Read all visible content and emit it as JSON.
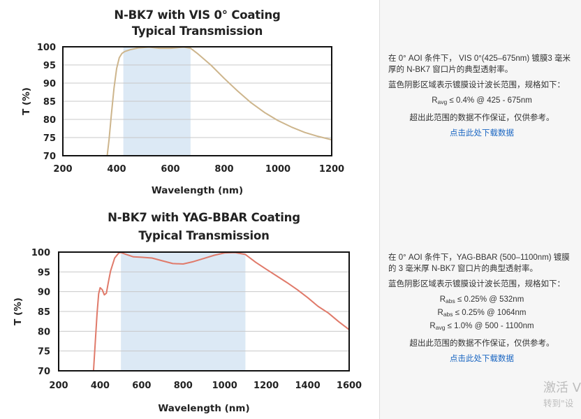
{
  "charts": [
    {
      "title_line1": "N-BK7 with VIS 0° Coating",
      "title_line2": "Typical Transmission",
      "xlabel": "Wavelength (nm)",
      "ylabel": "T (%)",
      "description": {
        "line1": "在 0° AOI 条件下， VIS 0°(425–675nm) 镀膜3 毫米厚的 N-BK7 窗口片的典型透射率。",
        "line2": "蓝色阴影区域表示镀膜设计波长范围，规格如下：",
        "specs": [
          {
            "sym": "R",
            "sub": "avg",
            "text": "≤ 0.4% @ 425 - 675nm"
          }
        ],
        "disclaimer": "超出此范围的数据不作保证，仅供参考。",
        "link": "点击此处下载数据"
      }
    },
    {
      "title_line1": "N-BK7 with YAG-BBAR Coating",
      "title_line2": "Typical Transmission",
      "xlabel": "Wavelength (nm)",
      "ylabel": "T (%)",
      "description": {
        "line1": "在 0° AOI 条件下，YAG-BBAR (500–1100nm) 镀膜的 3 毫米厚 N-BK7 窗口片的典型透射率。",
        "line2": "蓝色阴影区域表示镀膜设计波长范围，规格如下：",
        "specs": [
          {
            "sym": "R",
            "sub": "abs",
            "text": "≤ 0.25% @ 532nm"
          },
          {
            "sym": "R",
            "sub": "abs",
            "text": "≤ 0.25% @ 1064nm"
          },
          {
            "sym": "R",
            "sub": "avg",
            "text": "≤ 1.0% @ 500 - 1100nm"
          }
        ],
        "disclaimer": "超出此范围的数据不作保证，仅供参考。",
        "link": "点击此处下载数据"
      }
    }
  ],
  "watermark": {
    "line1": "激活 V",
    "line2": "转到\"设"
  },
  "chart_data": [
    {
      "type": "line",
      "title": "N-BK7 with VIS 0° Coating Typical Transmission",
      "xlabel": "Wavelength (nm)",
      "ylabel": "T (%)",
      "xlim": [
        200,
        1200
      ],
      "ylim": [
        70,
        100
      ],
      "xticks": [
        200,
        400,
        600,
        800,
        1000,
        1200
      ],
      "yticks": [
        70,
        75,
        80,
        85,
        90,
        95,
        100
      ],
      "shaded_region": [
        425,
        675
      ],
      "shade_color": "#dce9f5",
      "line_color": "#cdb58c",
      "grid": true,
      "series": [
        {
          "x": [
            365,
            372,
            380,
            390,
            400,
            410,
            420,
            430,
            450,
            480,
            520,
            560,
            600,
            650,
            675,
            700,
            750,
            800,
            850,
            900,
            950,
            1000,
            1050,
            1100,
            1150,
            1200
          ],
          "y": [
            70,
            74.5,
            81,
            88.5,
            94,
            97,
            98.2,
            98.7,
            99.2,
            99.7,
            99.9,
            99.6,
            99.6,
            99.9,
            99.6,
            98.2,
            95,
            91.3,
            87.8,
            84.6,
            81.9,
            79.7,
            77.9,
            76.4,
            75.3,
            74.4
          ]
        }
      ]
    },
    {
      "type": "line",
      "title": "N-BK7 with YAG-BBAR Coating Typical Transmission",
      "xlabel": "Wavelength (nm)",
      "ylabel": "T (%)",
      "xlim": [
        200,
        1600
      ],
      "ylim": [
        70,
        100
      ],
      "xticks": [
        200,
        400,
        600,
        800,
        1000,
        1200,
        1400,
        1600
      ],
      "yticks": [
        70,
        75,
        80,
        85,
        90,
        95,
        100
      ],
      "shaded_region": [
        500,
        1100
      ],
      "shade_color": "#dce9f5",
      "line_color": "#e07a6a",
      "grid": true,
      "series": [
        {
          "x": [
            368,
            375,
            385,
            393,
            400,
            410,
            420,
            430,
            440,
            450,
            470,
            490,
            500,
            520,
            560,
            600,
            650,
            700,
            750,
            800,
            850,
            900,
            950,
            1000,
            1050,
            1100,
            1150,
            1200,
            1250,
            1300,
            1350,
            1400,
            1450,
            1500,
            1550,
            1600
          ],
          "y": [
            70,
            76,
            84.5,
            89.5,
            91,
            90.5,
            89.2,
            89.6,
            92.5,
            95.2,
            98.5,
            99.8,
            99.9,
            99.5,
            98.8,
            98.7,
            98.5,
            97.8,
            97.1,
            97,
            97.6,
            98.4,
            99.2,
            99.8,
            99.9,
            99.4,
            97.4,
            95.7,
            94,
            92.3,
            90.5,
            88.5,
            86.3,
            84.6,
            82.4,
            80.4
          ]
        }
      ]
    }
  ]
}
